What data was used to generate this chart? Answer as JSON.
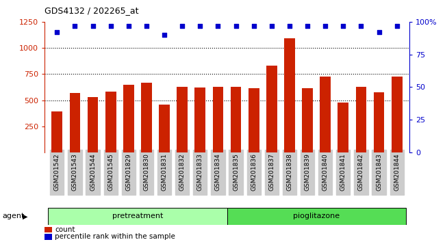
{
  "title": "GDS4132 / 202265_at",
  "categories": [
    "GSM201542",
    "GSM201543",
    "GSM201544",
    "GSM201545",
    "GSM201829",
    "GSM201830",
    "GSM201831",
    "GSM201832",
    "GSM201833",
    "GSM201834",
    "GSM201835",
    "GSM201836",
    "GSM201837",
    "GSM201838",
    "GSM201839",
    "GSM201840",
    "GSM201841",
    "GSM201842",
    "GSM201843",
    "GSM201844"
  ],
  "bar_values": [
    390,
    570,
    530,
    580,
    650,
    670,
    460,
    630,
    620,
    630,
    630,
    615,
    830,
    1090,
    615,
    725,
    475,
    630,
    575,
    725
  ],
  "percentile_values": [
    92,
    97,
    97,
    97,
    97,
    97,
    90,
    97,
    97,
    97,
    97,
    97,
    97,
    97,
    97,
    97,
    97,
    97,
    92,
    97
  ],
  "bar_color": "#cc2200",
  "dot_color": "#0000cc",
  "group_label_pretreatment": "pretreatment",
  "group_label_pioglitazone": "pioglitazone",
  "group_color_pretreatment": "#aaffaa",
  "group_color_pioglitazone": "#55dd55",
  "agent_label": "agent",
  "ylim_left": [
    0,
    1250
  ],
  "yticks_left": [
    250,
    500,
    750,
    1000,
    1250
  ],
  "yticks_right": [
    0,
    25,
    50,
    75,
    100
  ],
  "legend_count_label": "count",
  "legend_pct_label": "percentile rank within the sample",
  "tick_bg_color": "#cccccc"
}
